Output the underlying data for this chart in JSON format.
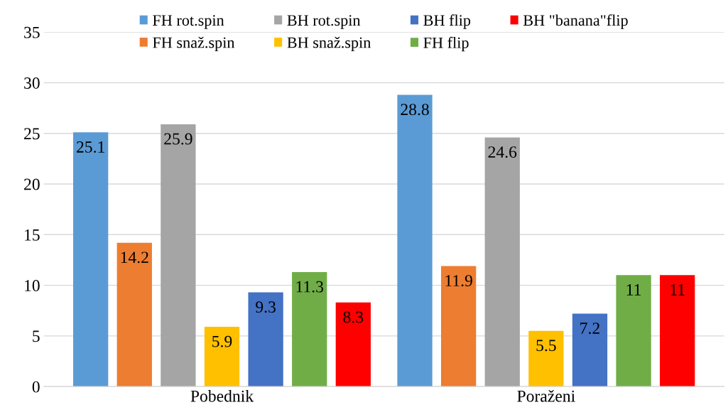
{
  "chart_data": {
    "type": "bar",
    "categories": [
      "Pobednik",
      "Poraženi"
    ],
    "series": [
      {
        "name": "FH rot.spin",
        "color": "#5b9bd5",
        "values": [
          25.1,
          28.8
        ]
      },
      {
        "name": "FH snaž.spin",
        "color": "#ed7d31",
        "values": [
          14.2,
          11.9
        ]
      },
      {
        "name": "BH rot.spin",
        "color": "#a5a5a5",
        "values": [
          25.9,
          24.6
        ]
      },
      {
        "name": "BH snaž.spin",
        "color": "#ffc000",
        "values": [
          5.9,
          5.5
        ]
      },
      {
        "name": "BH flip",
        "color": "#4472c4",
        "values": [
          9.3,
          7.2
        ]
      },
      {
        "name": "FH flip",
        "color": "#70ad47",
        "values": [
          11.3,
          11
        ]
      },
      {
        "name": "BH \"banana\"flip",
        "color": "#ff0000",
        "values": [
          8.3,
          11
        ]
      }
    ],
    "ylim": [
      0,
      35
    ],
    "yticks": [
      0,
      5,
      10,
      15,
      20,
      25,
      30,
      35
    ],
    "grid": "y",
    "legend": "top",
    "data_labels": true
  }
}
